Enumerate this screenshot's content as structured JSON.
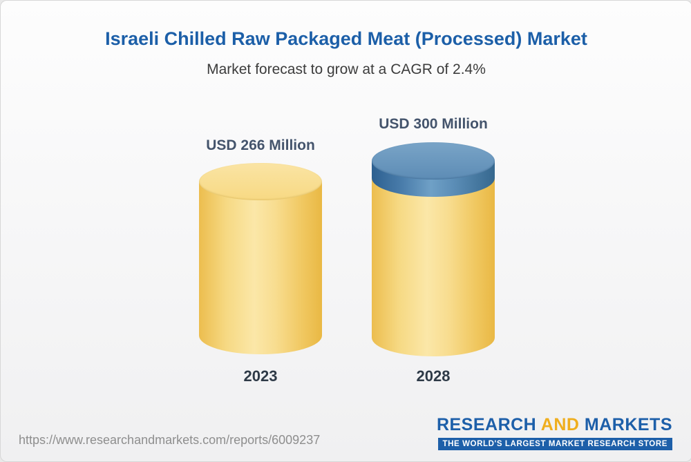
{
  "page": {
    "title": "Israeli Chilled Raw Packaged Meat (Processed) Market",
    "subtitle": "Market forecast to grow at a CAGR of 2.4%"
  },
  "chart_data": {
    "type": "bar",
    "variant": "3d-cylinder",
    "categories": [
      "2023",
      "2028"
    ],
    "values": [
      266,
      300
    ],
    "unit": "USD Million",
    "value_labels": [
      "USD 266 Million",
      "USD 300 Million"
    ],
    "title": "Israeli Chilled Raw Packaged Meat (Processed) Market",
    "subtitle": "Market forecast to grow at a CAGR of 2.4%",
    "cagr_percent": 2.4,
    "ylim": [
      0,
      300
    ],
    "grid": false,
    "legend": "none",
    "axes": "none",
    "colors": {
      "base_segment": "#f2cd66",
      "growth_cap_segment": "#4a7dab"
    }
  },
  "footer": {
    "url": "https://www.researchandmarkets.com/reports/6009237",
    "logo": {
      "part1": "RESEARCH",
      "part2": "AND",
      "part3": "MARKETS",
      "tagline": "THE WORLD'S LARGEST MARKET RESEARCH STORE"
    }
  }
}
